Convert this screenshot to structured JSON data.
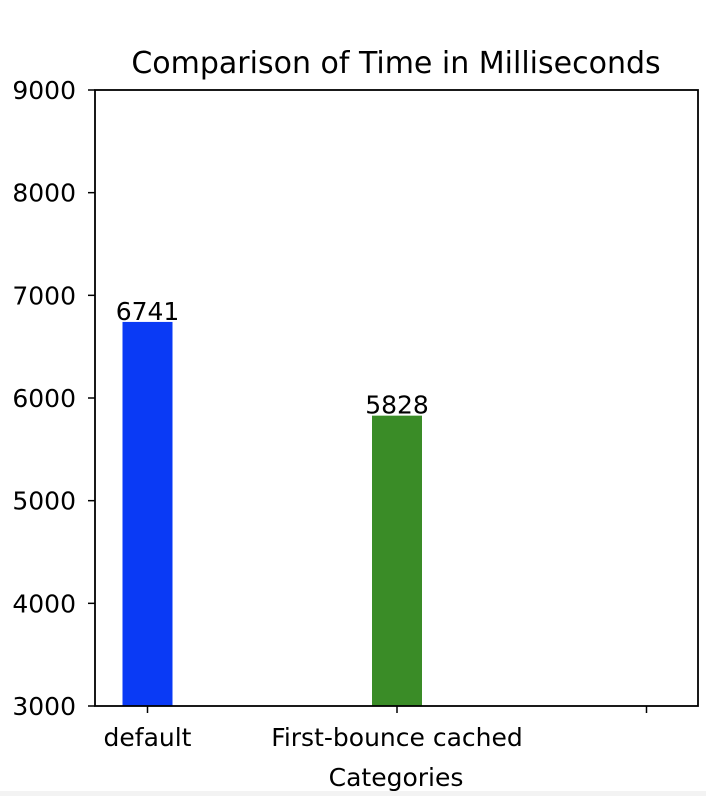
{
  "chart_data": {
    "type": "bar",
    "title": "Comparison of Time in Milliseconds",
    "xlabel": "Categories",
    "ylabel": "",
    "categories": [
      "default",
      "First-bounce cached",
      ""
    ],
    "values": [
      6741,
      5828,
      null
    ],
    "data_labels": [
      "6741",
      "5828",
      ""
    ],
    "colors": [
      "#0a3af5",
      "#3a8c27"
    ],
    "ylim": [
      3000,
      9000
    ],
    "yticks": [
      3000,
      4000,
      5000,
      6000,
      7000,
      8000,
      9000
    ],
    "grid": false,
    "legend": "none"
  }
}
